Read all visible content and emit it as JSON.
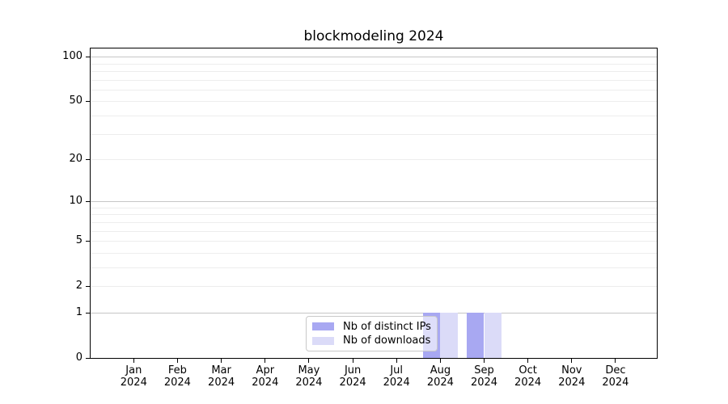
{
  "figure": {
    "background": "#ffffff",
    "spine_color": "#000000"
  },
  "chart_data": {
    "type": "bar",
    "title": "blockmodeling 2024",
    "xlabel": "",
    "ylabel": "",
    "categories": [
      "Jan",
      "Feb",
      "Mar",
      "Apr",
      "May",
      "Jun",
      "Jul",
      "Aug",
      "Sep",
      "Oct",
      "Nov",
      "Dec"
    ],
    "xtick_year": "2024",
    "series": [
      {
        "name": "Nb of distinct IPs",
        "color": "#a8a8f2",
        "values": [
          0,
          0,
          0,
          0,
          0,
          0,
          0,
          1,
          1,
          0,
          0,
          0
        ]
      },
      {
        "name": "Nb of downloads",
        "color": "#dbdbf8",
        "values": [
          0,
          0,
          0,
          0,
          0,
          0,
          0,
          1,
          1,
          0,
          0,
          0
        ]
      }
    ],
    "yscale": "log1p",
    "ylim": [
      0,
      113.4
    ],
    "yticks": [
      {
        "value": 0,
        "label": "0"
      },
      {
        "value": 1,
        "label": "1"
      },
      {
        "value": 2,
        "label": "2"
      },
      {
        "value": 5,
        "label": "5"
      },
      {
        "value": 10,
        "label": "10"
      },
      {
        "value": 20,
        "label": "20"
      },
      {
        "value": 50,
        "label": "50"
      },
      {
        "value": 100,
        "label": "100"
      }
    ],
    "major_gridlines": [
      1,
      10,
      100
    ],
    "minor_gridlines": [
      2,
      3,
      4,
      5,
      6,
      7,
      8,
      9,
      20,
      30,
      40,
      50,
      60,
      70,
      80,
      90
    ],
    "grid_major_color": "#c6c6c6",
    "grid_minor_color": "#ededed",
    "legend": {
      "entries": [
        "Nb of distinct IPs",
        "Nb of downloads"
      ],
      "position": "inside-bottom-center",
      "border_color": "#c9c9c9"
    }
  }
}
